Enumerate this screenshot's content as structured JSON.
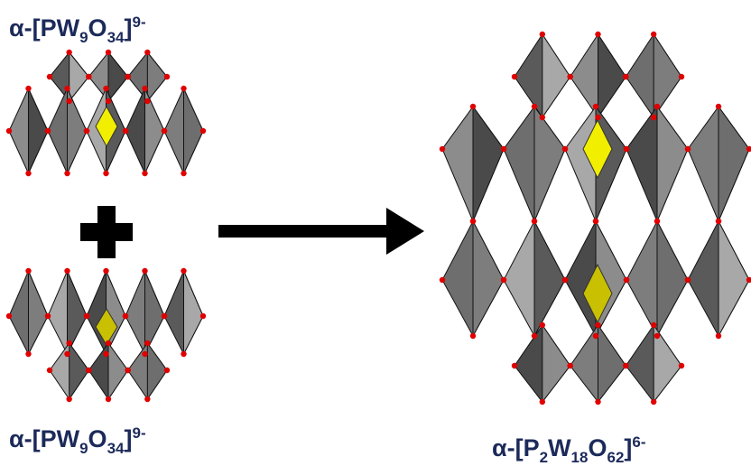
{
  "left_top_label": {
    "prefix": "α-[PW",
    "w_count": "9",
    "oxygen": "O",
    "o_count": "34",
    "bracket": "]",
    "charge": "9-"
  },
  "plus": "+",
  "left_bottom_label": {
    "prefix": "α-[PW",
    "w_count": "9",
    "oxygen": "O",
    "o_count": "34",
    "bracket": "]",
    "charge": "9-"
  },
  "right_label": {
    "prefix": "α-[P",
    "p_count": "2",
    "tungsten": "W",
    "w_count": "18",
    "oxygen": "O",
    "o_count": "62",
    "bracket": "]",
    "charge": "6-"
  }
}
